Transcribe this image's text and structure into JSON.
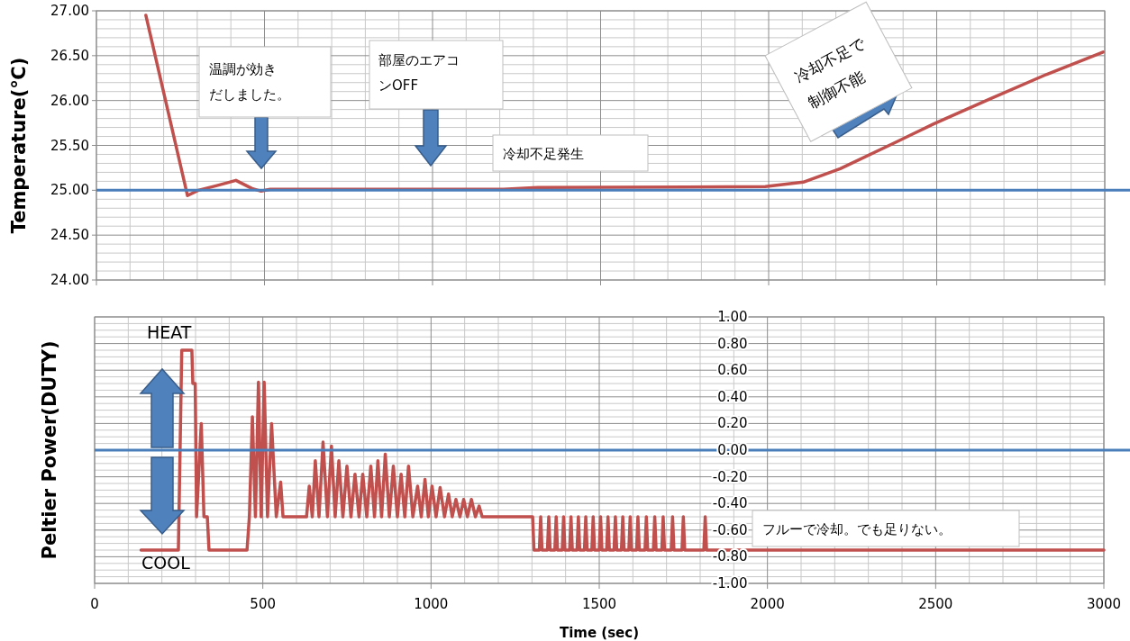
{
  "chart_data": [
    {
      "type": "line",
      "ylabel": "Temperature(℃)",
      "xlim": [
        0,
        3000
      ],
      "xticks": [
        0,
        500,
        1000,
        1500,
        2000,
        2500,
        3000
      ],
      "ylim": [
        24,
        27
      ],
      "yticks": [
        {
          "value": 24,
          "label": "24.00"
        },
        {
          "value": 24.5,
          "label": "24.50"
        },
        {
          "value": 25,
          "label": "25.00"
        },
        {
          "value": 25.5,
          "label": "25.50"
        },
        {
          "value": 26,
          "label": "26.00"
        },
        {
          "value": 26.5,
          "label": "26.50"
        },
        {
          "value": 27,
          "label": "27.00"
        }
      ],
      "tick_labels": "y",
      "grid": true,
      "series": [
        {
          "color": "#c0504d",
          "x": [
            147,
            271,
            303,
            356,
            415,
            463,
            490,
            517,
            1211,
            1313,
            1990,
            2103,
            2213,
            2381,
            2491,
            2660,
            2826,
            2995
          ],
          "values": [
            26.95,
            24.94,
            25.0,
            25.05,
            25.11,
            25.02,
            24.99,
            25.01,
            25.01,
            25.03,
            25.04,
            25.09,
            25.24,
            25.54,
            25.74,
            26.02,
            26.29,
            26.54
          ]
        }
      ],
      "ref_lines": [
        {
          "axis": "y",
          "value": 25,
          "color": "#4a7ebb"
        }
      ],
      "annotations": [
        "温調が効きだしました。",
        "部屋のエアコンOFF",
        "冷却不足発生",
        "冷却不足で制御不能"
      ]
    },
    {
      "type": "line",
      "xlabel": "Time (sec)",
      "ylabel": "Peltier Power(DUTY)",
      "xlim": [
        0,
        3000
      ],
      "xticks": [
        0,
        500,
        1000,
        1500,
        2000,
        2500,
        3000
      ],
      "ylim": [
        -1,
        1
      ],
      "yticks": [
        {
          "value": -1,
          "label": "-1.00"
        },
        {
          "value": -0.8,
          "label": "-0.80"
        },
        {
          "value": -0.6,
          "label": "-0.60"
        },
        {
          "value": -0.4,
          "label": "-0.40"
        },
        {
          "value": -0.2,
          "label": "-0.20"
        },
        {
          "value": 0,
          "label": "0.00"
        },
        {
          "value": 0.2,
          "label": "0.20"
        },
        {
          "value": 0.4,
          "label": "0.40"
        },
        {
          "value": 0.6,
          "label": "0.60"
        },
        {
          "value": 0.8,
          "label": "0.80"
        },
        {
          "value": 1,
          "label": "1.00"
        }
      ],
      "grid": true,
      "series": [
        {
          "color": "#c0504d",
          "x": [
            138,
            249,
            259,
            289,
            292,
            299,
            303,
            317,
            325,
            335,
            340,
            453,
            460,
            469,
            478,
            487,
            495,
            504,
            514,
            526,
            540,
            553,
            560,
            630,
            638,
            647,
            656,
            667,
            679,
            692,
            704,
            715,
            726,
            738,
            750,
            762,
            774,
            786,
            797,
            809,
            821,
            832,
            842,
            853,
            864,
            876,
            888,
            900,
            911,
            922,
            933,
            946,
            960,
            971,
            982,
            992,
            1003,
            1015,
            1027,
            1040,
            1052,
            1063,
            1074,
            1086,
            1097,
            1108,
            1120,
            1132,
            1143,
            1152,
            1302,
            1306,
            1322,
            1326,
            1330,
            1346,
            1350,
            1354,
            1368,
            1372,
            1376,
            1390,
            1394,
            1398,
            1412,
            1416,
            1420,
            1434,
            1438,
            1442,
            1456,
            1460,
            1464,
            1478,
            1482,
            1486,
            1500,
            1504,
            1508,
            1522,
            1526,
            1530,
            1544,
            1548,
            1552,
            1566,
            1570,
            1574,
            1588,
            1592,
            1596,
            1611,
            1615,
            1619,
            1636,
            1640,
            1644,
            1661,
            1665,
            1669,
            1686,
            1690,
            1694,
            1714,
            1718,
            1722,
            1746,
            1750,
            1754,
            1811,
            1815,
            1819,
            3000
          ],
          "values": [
            -0.75,
            -0.75,
            0.75,
            0.75,
            0.5,
            0.5,
            -0.5,
            0.2,
            -0.5,
            -0.5,
            -0.75,
            -0.75,
            -0.5,
            0.25,
            -0.5,
            0.51,
            -0.5,
            0.51,
            -0.5,
            0.2,
            -0.5,
            -0.24,
            -0.5,
            -0.5,
            -0.27,
            -0.5,
            -0.08,
            -0.5,
            0.06,
            -0.5,
            0.03,
            -0.5,
            -0.08,
            -0.5,
            -0.12,
            -0.5,
            -0.18,
            -0.5,
            -0.18,
            -0.5,
            -0.12,
            -0.5,
            -0.08,
            -0.5,
            -0.03,
            -0.5,
            -0.12,
            -0.5,
            -0.18,
            -0.5,
            -0.12,
            -0.5,
            -0.27,
            -0.5,
            -0.22,
            -0.5,
            -0.27,
            -0.5,
            -0.28,
            -0.5,
            -0.33,
            -0.5,
            -0.37,
            -0.5,
            -0.37,
            -0.5,
            -0.37,
            -0.5,
            -0.42,
            -0.5,
            -0.5,
            -0.75,
            -0.75,
            -0.5,
            -0.75,
            -0.75,
            -0.5,
            -0.75,
            -0.75,
            -0.5,
            -0.75,
            -0.75,
            -0.5,
            -0.75,
            -0.75,
            -0.5,
            -0.75,
            -0.75,
            -0.5,
            -0.75,
            -0.75,
            -0.5,
            -0.75,
            -0.75,
            -0.5,
            -0.75,
            -0.75,
            -0.5,
            -0.75,
            -0.75,
            -0.5,
            -0.75,
            -0.75,
            -0.5,
            -0.75,
            -0.75,
            -0.5,
            -0.75,
            -0.75,
            -0.5,
            -0.75,
            -0.75,
            -0.5,
            -0.75,
            -0.75,
            -0.5,
            -0.75,
            -0.75,
            -0.5,
            -0.75,
            -0.75,
            -0.5,
            -0.75,
            -0.75,
            -0.5,
            -0.75,
            -0.75,
            -0.5,
            -0.75,
            -0.75,
            -0.5,
            -0.75,
            -0.75
          ]
        }
      ],
      "ref_lines": [
        {
          "axis": "y",
          "value": 0,
          "color": "#4a7ebb"
        }
      ],
      "annotations": [
        "HEAT",
        "COOL",
        "フルーで冷却。でも足りない。"
      ]
    }
  ]
}
